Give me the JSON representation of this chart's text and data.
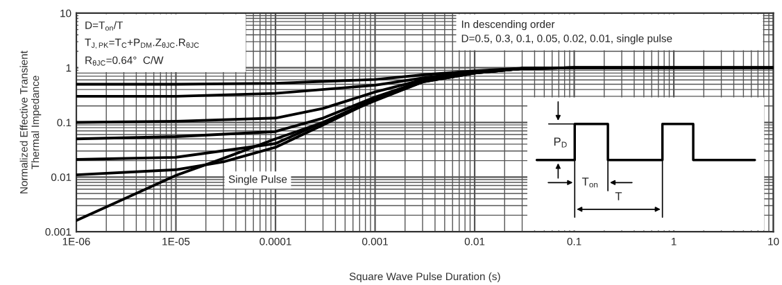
{
  "chart_data": {
    "type": "line",
    "xlabel": "Square Wave Pulse Duration (s)",
    "ylabel": "Normalized Effective Transient\nThermal Impedance",
    "log": "xy",
    "grid": true,
    "legend": false,
    "marker": "none",
    "line_style": "solid",
    "xlim": [
      1e-06,
      10
    ],
    "ylim": [
      0.001,
      10
    ],
    "xticks": [
      {
        "value": 1e-06,
        "label": "1E-06"
      },
      {
        "value": 1e-05,
        "label": "1E-05"
      },
      0.0001,
      0.001,
      0.01,
      0.1,
      1,
      10
    ],
    "yticks": [
      0.001,
      0.01,
      0.1,
      1,
      10
    ],
    "series": [
      {
        "color": "#000000",
        "x": [
          1e-06,
          1e-05,
          0.0001,
          0.001,
          0.003,
          0.01,
          0.03,
          0.1,
          1,
          10
        ],
        "values": [
          0.5,
          0.5,
          0.52,
          0.61,
          0.74,
          0.88,
          0.98,
          1.0,
          1.0,
          1.0
        ]
      },
      {
        "color": "#000000",
        "x": [
          1e-06,
          1e-05,
          0.0001,
          0.001,
          0.003,
          0.01,
          0.03,
          0.1,
          1,
          10
        ],
        "values": [
          0.3,
          0.3,
          0.34,
          0.48,
          0.65,
          0.85,
          0.97,
          1.0,
          1.0,
          1.0
        ]
      },
      {
        "color": "#000000",
        "x": [
          1e-06,
          1e-05,
          0.0001,
          0.0003,
          0.001,
          0.003,
          0.01,
          0.03,
          0.1,
          1,
          10
        ],
        "values": [
          0.1,
          0.105,
          0.12,
          0.18,
          0.36,
          0.6,
          0.82,
          0.97,
          1.0,
          1.0,
          1.0
        ]
      },
      {
        "color": "#000000",
        "x": [
          1e-06,
          1e-05,
          0.0001,
          0.0003,
          0.001,
          0.003,
          0.01,
          0.03,
          0.1,
          1,
          10
        ],
        "values": [
          0.05,
          0.055,
          0.068,
          0.12,
          0.29,
          0.57,
          0.81,
          0.97,
          1.0,
          1.0,
          1.0
        ]
      },
      {
        "color": "#000000",
        "x": [
          1e-06,
          1e-05,
          0.0001,
          0.0003,
          0.001,
          0.003,
          0.01,
          0.03,
          0.1,
          1,
          10
        ],
        "values": [
          0.021,
          0.023,
          0.041,
          0.1,
          0.27,
          0.56,
          0.8,
          0.97,
          1.0,
          1.0,
          1.0
        ]
      },
      {
        "color": "#000000",
        "x": [
          1e-06,
          1e-05,
          3e-05,
          0.0001,
          0.0003,
          0.001,
          0.003,
          0.01,
          0.03,
          0.1,
          1,
          10
        ],
        "values": [
          0.011,
          0.0136,
          0.019,
          0.035,
          0.09,
          0.26,
          0.55,
          0.8,
          0.97,
          1.0,
          1.0,
          1.0
        ]
      },
      {
        "color": "#000000",
        "x": [
          1e-06,
          1e-05,
          3e-05,
          0.0001,
          0.0003,
          0.001,
          0.003,
          0.01,
          0.03,
          0.1,
          1,
          10
        ],
        "values": [
          0.0016,
          0.0107,
          0.022,
          0.05,
          0.1,
          0.25,
          0.55,
          0.8,
          0.97,
          1.0,
          1.0,
          1.0
        ]
      }
    ],
    "annotations": [
      "D=T$_{on}$/T",
      "T$_{J,PK}$=T$_{C}$+P$_{DM}$.Z$_{θJC}$.R$_{θJC}$",
      "R$_{θJC}$=0.64°  C/W",
      "In descending order",
      "D=0.5, 0.3, 0.1, 0.05, 0.02, 0.01, single pulse",
      "Single Pulse",
      "P$_{D}$",
      "T$_{on}$",
      "T"
    ]
  }
}
